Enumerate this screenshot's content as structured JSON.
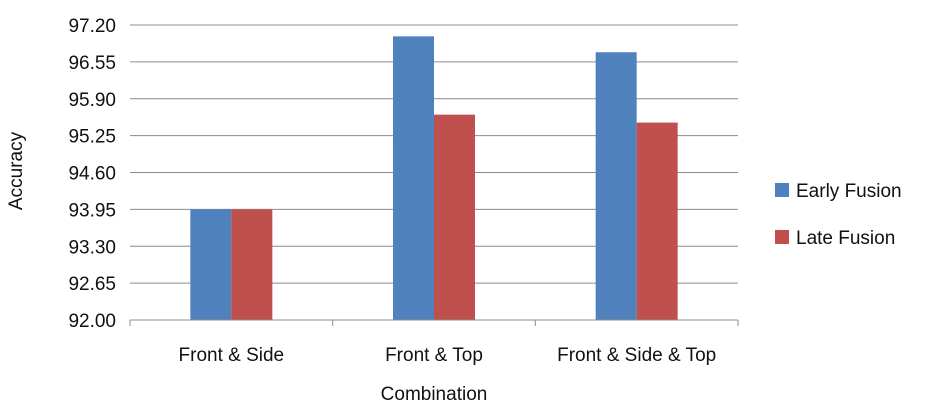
{
  "chart_data": {
    "type": "bar",
    "title": "",
    "xlabel": "Combination",
    "ylabel": "Accuracy",
    "categories": [
      "Front & Side",
      "Front & Top",
      "Front & Side & Top"
    ],
    "series": [
      {
        "name": "Early Fusion",
        "color": "#4f81bd",
        "values": [
          93.95,
          97.0,
          96.72
        ]
      },
      {
        "name": "Late Fusion",
        "color": "#c0504d",
        "values": [
          93.95,
          95.62,
          95.48
        ]
      }
    ],
    "ylim": [
      92.0,
      97.2
    ],
    "yticks": [
      "92.00",
      "92.65",
      "93.30",
      "93.95",
      "94.60",
      "95.25",
      "95.90",
      "96.55",
      "97.20"
    ],
    "grid": true,
    "legend_position": "right"
  }
}
